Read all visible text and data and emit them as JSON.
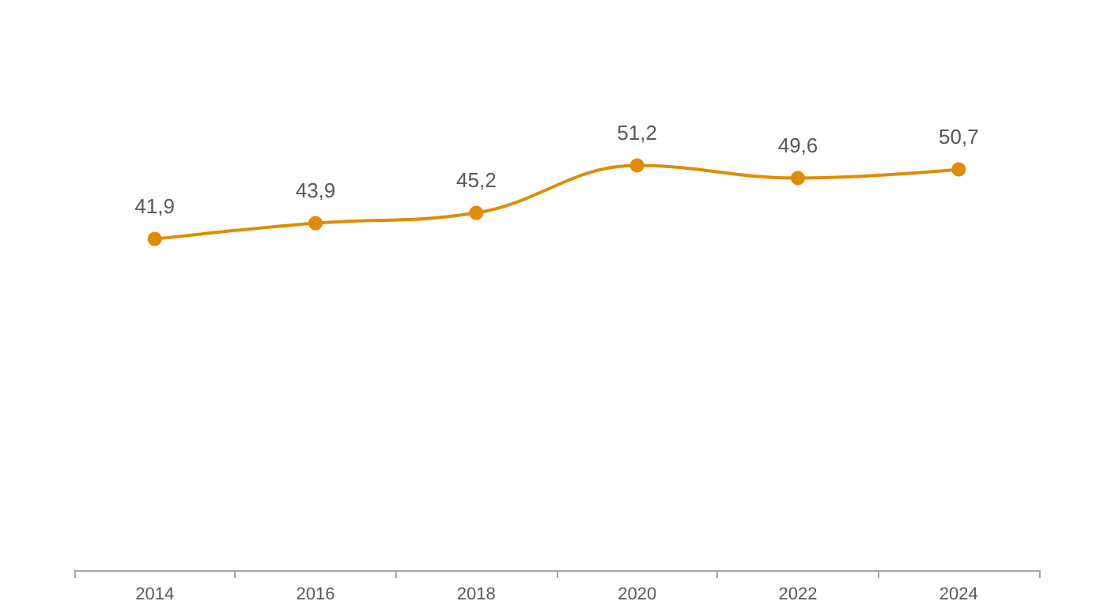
{
  "chart_data": {
    "type": "line",
    "categories": [
      "2014",
      "2016",
      "2018",
      "2020",
      "2022",
      "2024"
    ],
    "series": [
      {
        "color": "#e08c00",
        "values": [
          41.9,
          43.9,
          45.2,
          51.2,
          49.6,
          50.7
        ],
        "value_labels": [
          "41,9",
          "43,9",
          "45,2",
          "51,2",
          "49,6",
          "50,7"
        ]
      }
    ],
    "tick_labels": "x",
    "marker": "circle",
    "line_style": "solid"
  }
}
